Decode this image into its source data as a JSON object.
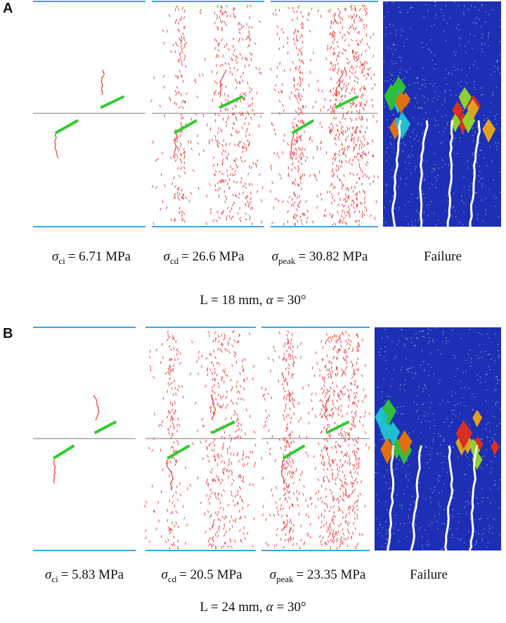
{
  "panels": [
    {
      "label": "A",
      "columns": [
        {
          "symbol": "σ",
          "subscript": "ci",
          "text": "= 6.71 MPa"
        },
        {
          "symbol": "σ",
          "subscript": "cd",
          "text": "= 26.6 MPa"
        },
        {
          "symbol": "σ",
          "subscript": "peak",
          "text": "= 30.82 MPa"
        },
        {
          "text": "Failure"
        }
      ],
      "caption": {
        "prefix": "L = 18 mm,",
        "symbol": "α",
        "suffix": "= 30°"
      }
    },
    {
      "label": "B",
      "columns": [
        {
          "symbol": "σ",
          "subscript": "ci",
          "text": "= 5.83 MPa"
        },
        {
          "symbol": "σ",
          "subscript": "cd",
          "text": "= 20.5 MPa"
        },
        {
          "symbol": "σ",
          "subscript": "peak",
          "text": "= 23.35 MPa"
        },
        {
          "text": "Failure"
        }
      ],
      "caption": {
        "prefix": "L = 24 mm,",
        "symbol": "α",
        "suffix": "= 30°"
      }
    }
  ]
}
